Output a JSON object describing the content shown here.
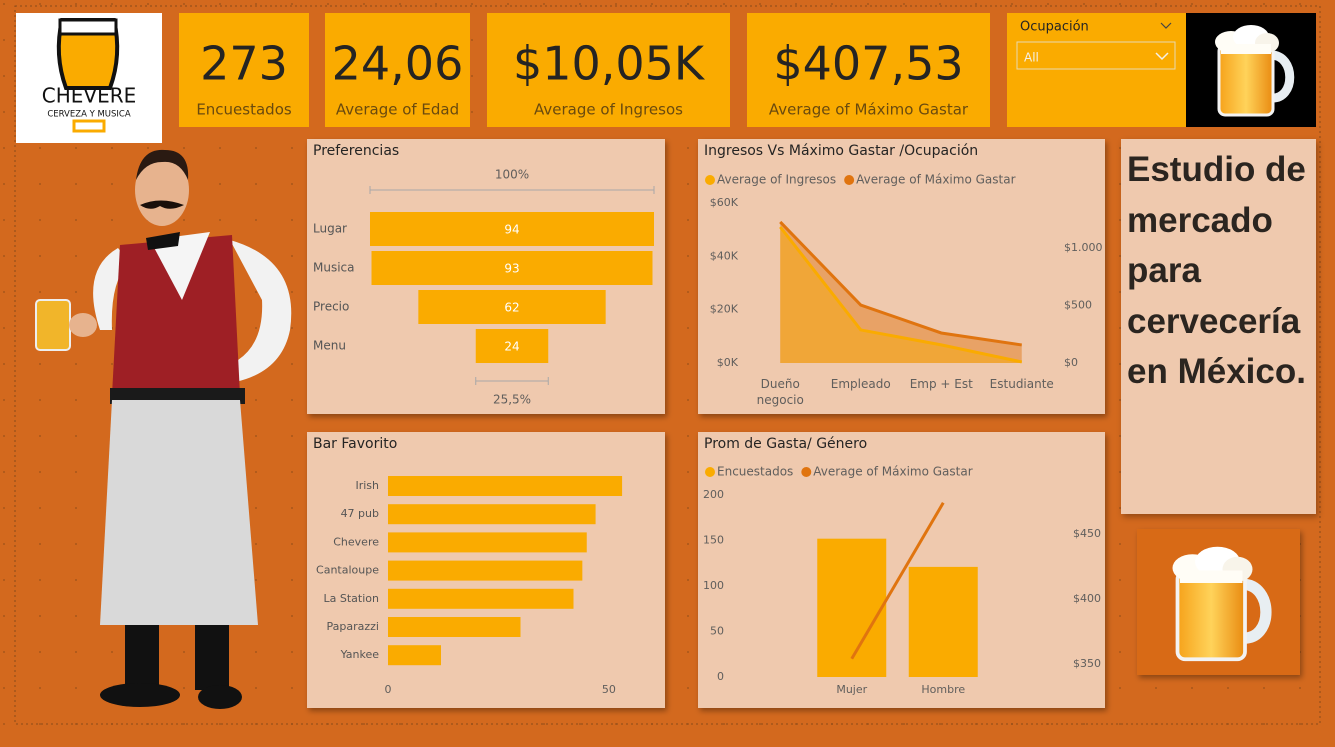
{
  "logo": {
    "name": "CHEVERE",
    "tagline": "CERVEZA Y MUSICA"
  },
  "cards": [
    {
      "value": "273",
      "label": "Encuestados"
    },
    {
      "value": "24,06",
      "label": "Average of Edad"
    },
    {
      "value": "$10,05K",
      "label": "Average of Ingresos"
    },
    {
      "value": "$407,53",
      "label": "Average of Máximo Gastar"
    }
  ],
  "slicer": {
    "title": "Ocupación",
    "selected": "All"
  },
  "headline": "Estudio de mercado para cervecería en México.",
  "chart_data": [
    {
      "type": "funnel",
      "title": "Preferencias",
      "categories": [
        "Lugar",
        "Musica",
        "Precio",
        "Menu"
      ],
      "values": [
        94,
        93,
        62,
        24
      ],
      "color": "#FAAB00",
      "top_label": "100%",
      "bottom_label": "25,5%"
    },
    {
      "type": "bar",
      "orientation": "horizontal",
      "title": "Bar Favorito",
      "categories": [
        "Irish",
        "47 pub",
        "Chevere",
        "Cantaloupe",
        "La Station",
        "Paparazzi",
        "Yankee"
      ],
      "values": [
        53,
        47,
        45,
        44,
        42,
        30,
        12
      ],
      "color": "#FAAB00",
      "xlim": [
        0,
        60
      ],
      "xticks": [
        0,
        50
      ]
    },
    {
      "type": "area",
      "title": "Ingresos Vs Máximo Gastar /Ocupación",
      "categories": [
        "Dueño negocio",
        "Empleado",
        "Emp + Est",
        "Estudiante"
      ],
      "series": [
        {
          "name": "Average of Ingresos",
          "color": "#FAAB00",
          "values": [
            51000,
            12400,
            6800,
            400
          ]
        },
        {
          "name": "Average of Máximo Gastar",
          "color": "#E0740F",
          "axis": "y2",
          "values": [
            1226,
            504,
            261,
            157
          ]
        }
      ],
      "ylim": [
        0,
        60000
      ],
      "yticks": [
        {
          "value": 0,
          "label": "$0K"
        },
        {
          "value": 20000,
          "label": "$20K"
        },
        {
          "value": 40000,
          "label": "$40K"
        },
        {
          "value": 60000,
          "label": "$60K"
        }
      ],
      "y2lim": [
        0,
        1391
      ],
      "y2ticks": [
        {
          "value": 0,
          "label": "$0"
        },
        {
          "value": 500,
          "label": "$500"
        },
        {
          "value": 1000,
          "label": "$1.000"
        }
      ],
      "legend": "top-left"
    },
    {
      "type": "combo",
      "title": "Prom de Gasta/ Género",
      "categories": [
        "Mujer",
        "Hombre"
      ],
      "series": [
        {
          "name": "Encuestados",
          "type": "bar",
          "color": "#FAAB00",
          "values": [
            152,
            121
          ]
        },
        {
          "name": "Average of Máximo Gastar",
          "type": "line",
          "color": "#E0740F",
          "axis": "y2",
          "values": [
            354,
            474
          ]
        }
      ],
      "ylim": [
        0,
        200
      ],
      "yticks": [
        0,
        50,
        100,
        150,
        200
      ],
      "y2lim": [
        340,
        480
      ],
      "y2ticks": [
        {
          "value": 350,
          "label": "$350"
        },
        {
          "value": 400,
          "label": "$400"
        },
        {
          "value": 450,
          "label": "$450"
        }
      ],
      "legend": "top-left"
    }
  ]
}
